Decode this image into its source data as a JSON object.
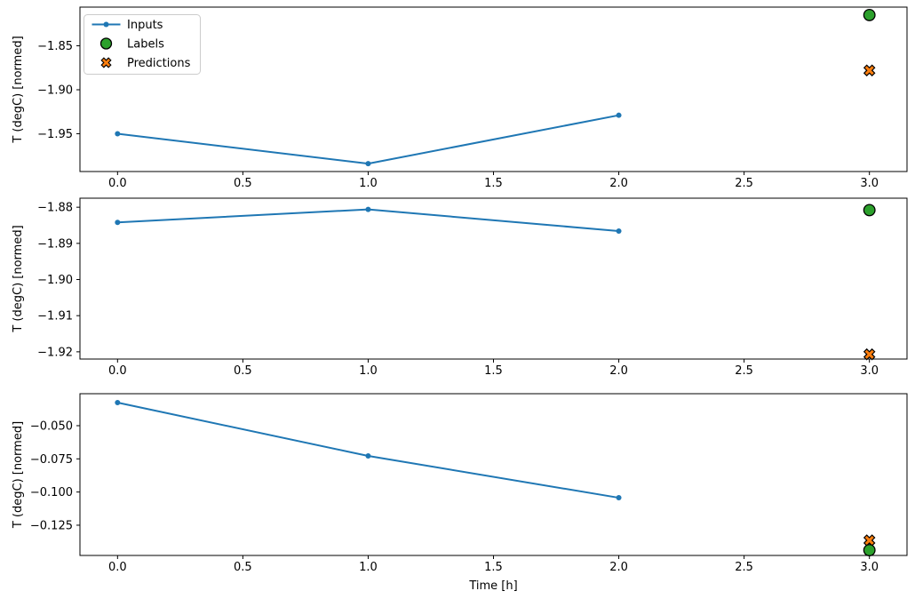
{
  "figure": {
    "background": "#ffffff",
    "text_color": "#000000",
    "spine_color": "#000000",
    "legend": {
      "position": "upper-left",
      "border_color": "#cccccc",
      "background": "#ffffff",
      "entries": [
        {
          "label": "Inputs",
          "marker": "line-dot",
          "color": "#1f77b4",
          "edge": "#1f77b4"
        },
        {
          "label": "Labels",
          "marker": "circle",
          "color": "#2ca02c",
          "edge": "#000000"
        },
        {
          "label": "Predictions",
          "marker": "x-filled",
          "color": "#ff7f0e",
          "edge": "#000000"
        }
      ]
    }
  },
  "xaxis": {
    "xlabel": "Time [h]",
    "xlim": [
      -0.15,
      3.15
    ],
    "xticks": [
      {
        "value": 0.0,
        "label": "0.0"
      },
      {
        "value": 0.5,
        "label": "0.5"
      },
      {
        "value": 1.0,
        "label": "1.0"
      },
      {
        "value": 1.5,
        "label": "1.5"
      },
      {
        "value": 2.0,
        "label": "2.0"
      },
      {
        "value": 2.5,
        "label": "2.5"
      },
      {
        "value": 3.0,
        "label": "3.0"
      }
    ]
  },
  "chart_data": [
    {
      "type": "line",
      "ylabel": "T (degC) [normed]",
      "ylim": [
        -1.993,
        -1.806
      ],
      "grid": false,
      "yticks": [
        {
          "value": -1.85,
          "label": "−1.85"
        },
        {
          "value": -1.9,
          "label": "−1.90"
        },
        {
          "value": -1.95,
          "label": "−1.95"
        }
      ],
      "series": [
        {
          "name": "Inputs",
          "kind": "line",
          "marker": "dot",
          "color": "#1f77b4",
          "edge": "#1f77b4",
          "x": [
            0,
            1,
            2
          ],
          "y": [
            -1.95,
            -1.984,
            -1.929
          ]
        },
        {
          "name": "Predictions",
          "kind": "scatter",
          "marker": "x-filled",
          "color": "#ff7f0e",
          "edge": "#000000",
          "x": [
            3
          ],
          "y": [
            -1.878
          ]
        },
        {
          "name": "Labels",
          "kind": "scatter",
          "marker": "circle",
          "color": "#2ca02c",
          "edge": "#000000",
          "x": [
            3
          ],
          "y": [
            -1.815
          ]
        }
      ]
    },
    {
      "type": "line",
      "ylabel": "T (degC) [normed]",
      "ylim": [
        -1.922,
        -1.8775
      ],
      "grid": false,
      "yticks": [
        {
          "value": -1.88,
          "label": "−1.88"
        },
        {
          "value": -1.89,
          "label": "−1.89"
        },
        {
          "value": -1.9,
          "label": "−1.90"
        },
        {
          "value": -1.91,
          "label": "−1.91"
        },
        {
          "value": -1.92,
          "label": "−1.92"
        }
      ],
      "series": [
        {
          "name": "Inputs",
          "kind": "line",
          "marker": "dot",
          "color": "#1f77b4",
          "edge": "#1f77b4",
          "x": [
            0,
            1,
            2
          ],
          "y": [
            -1.8842,
            -1.8806,
            -1.8866
          ]
        },
        {
          "name": "Predictions",
          "kind": "scatter",
          "marker": "x-filled",
          "color": "#ff7f0e",
          "edge": "#000000",
          "x": [
            3
          ],
          "y": [
            -1.9207
          ]
        },
        {
          "name": "Labels",
          "kind": "scatter",
          "marker": "circle",
          "color": "#2ca02c",
          "edge": "#000000",
          "x": [
            3
          ],
          "y": [
            -1.8808
          ]
        }
      ]
    },
    {
      "type": "line",
      "ylabel": "T (degC) [normed]",
      "ylim": [
        -0.1478,
        -0.0259
      ],
      "grid": false,
      "yticks": [
        {
          "value": -0.05,
          "label": "−0.050"
        },
        {
          "value": -0.075,
          "label": "−0.075"
        },
        {
          "value": -0.1,
          "label": "−0.100"
        },
        {
          "value": -0.125,
          "label": "−0.125"
        }
      ],
      "series": [
        {
          "name": "Inputs",
          "kind": "line",
          "marker": "dot",
          "color": "#1f77b4",
          "edge": "#1f77b4",
          "x": [
            0,
            1,
            2
          ],
          "y": [
            -0.0326,
            -0.0728,
            -0.1043
          ]
        },
        {
          "name": "Predictions",
          "kind": "scatter",
          "marker": "x-filled",
          "color": "#ff7f0e",
          "edge": "#000000",
          "x": [
            3
          ],
          "y": [
            -0.1364
          ]
        },
        {
          "name": "Labels",
          "kind": "scatter",
          "marker": "circle",
          "color": "#2ca02c",
          "edge": "#000000",
          "x": [
            3
          ],
          "y": [
            -0.1438
          ]
        }
      ]
    }
  ]
}
